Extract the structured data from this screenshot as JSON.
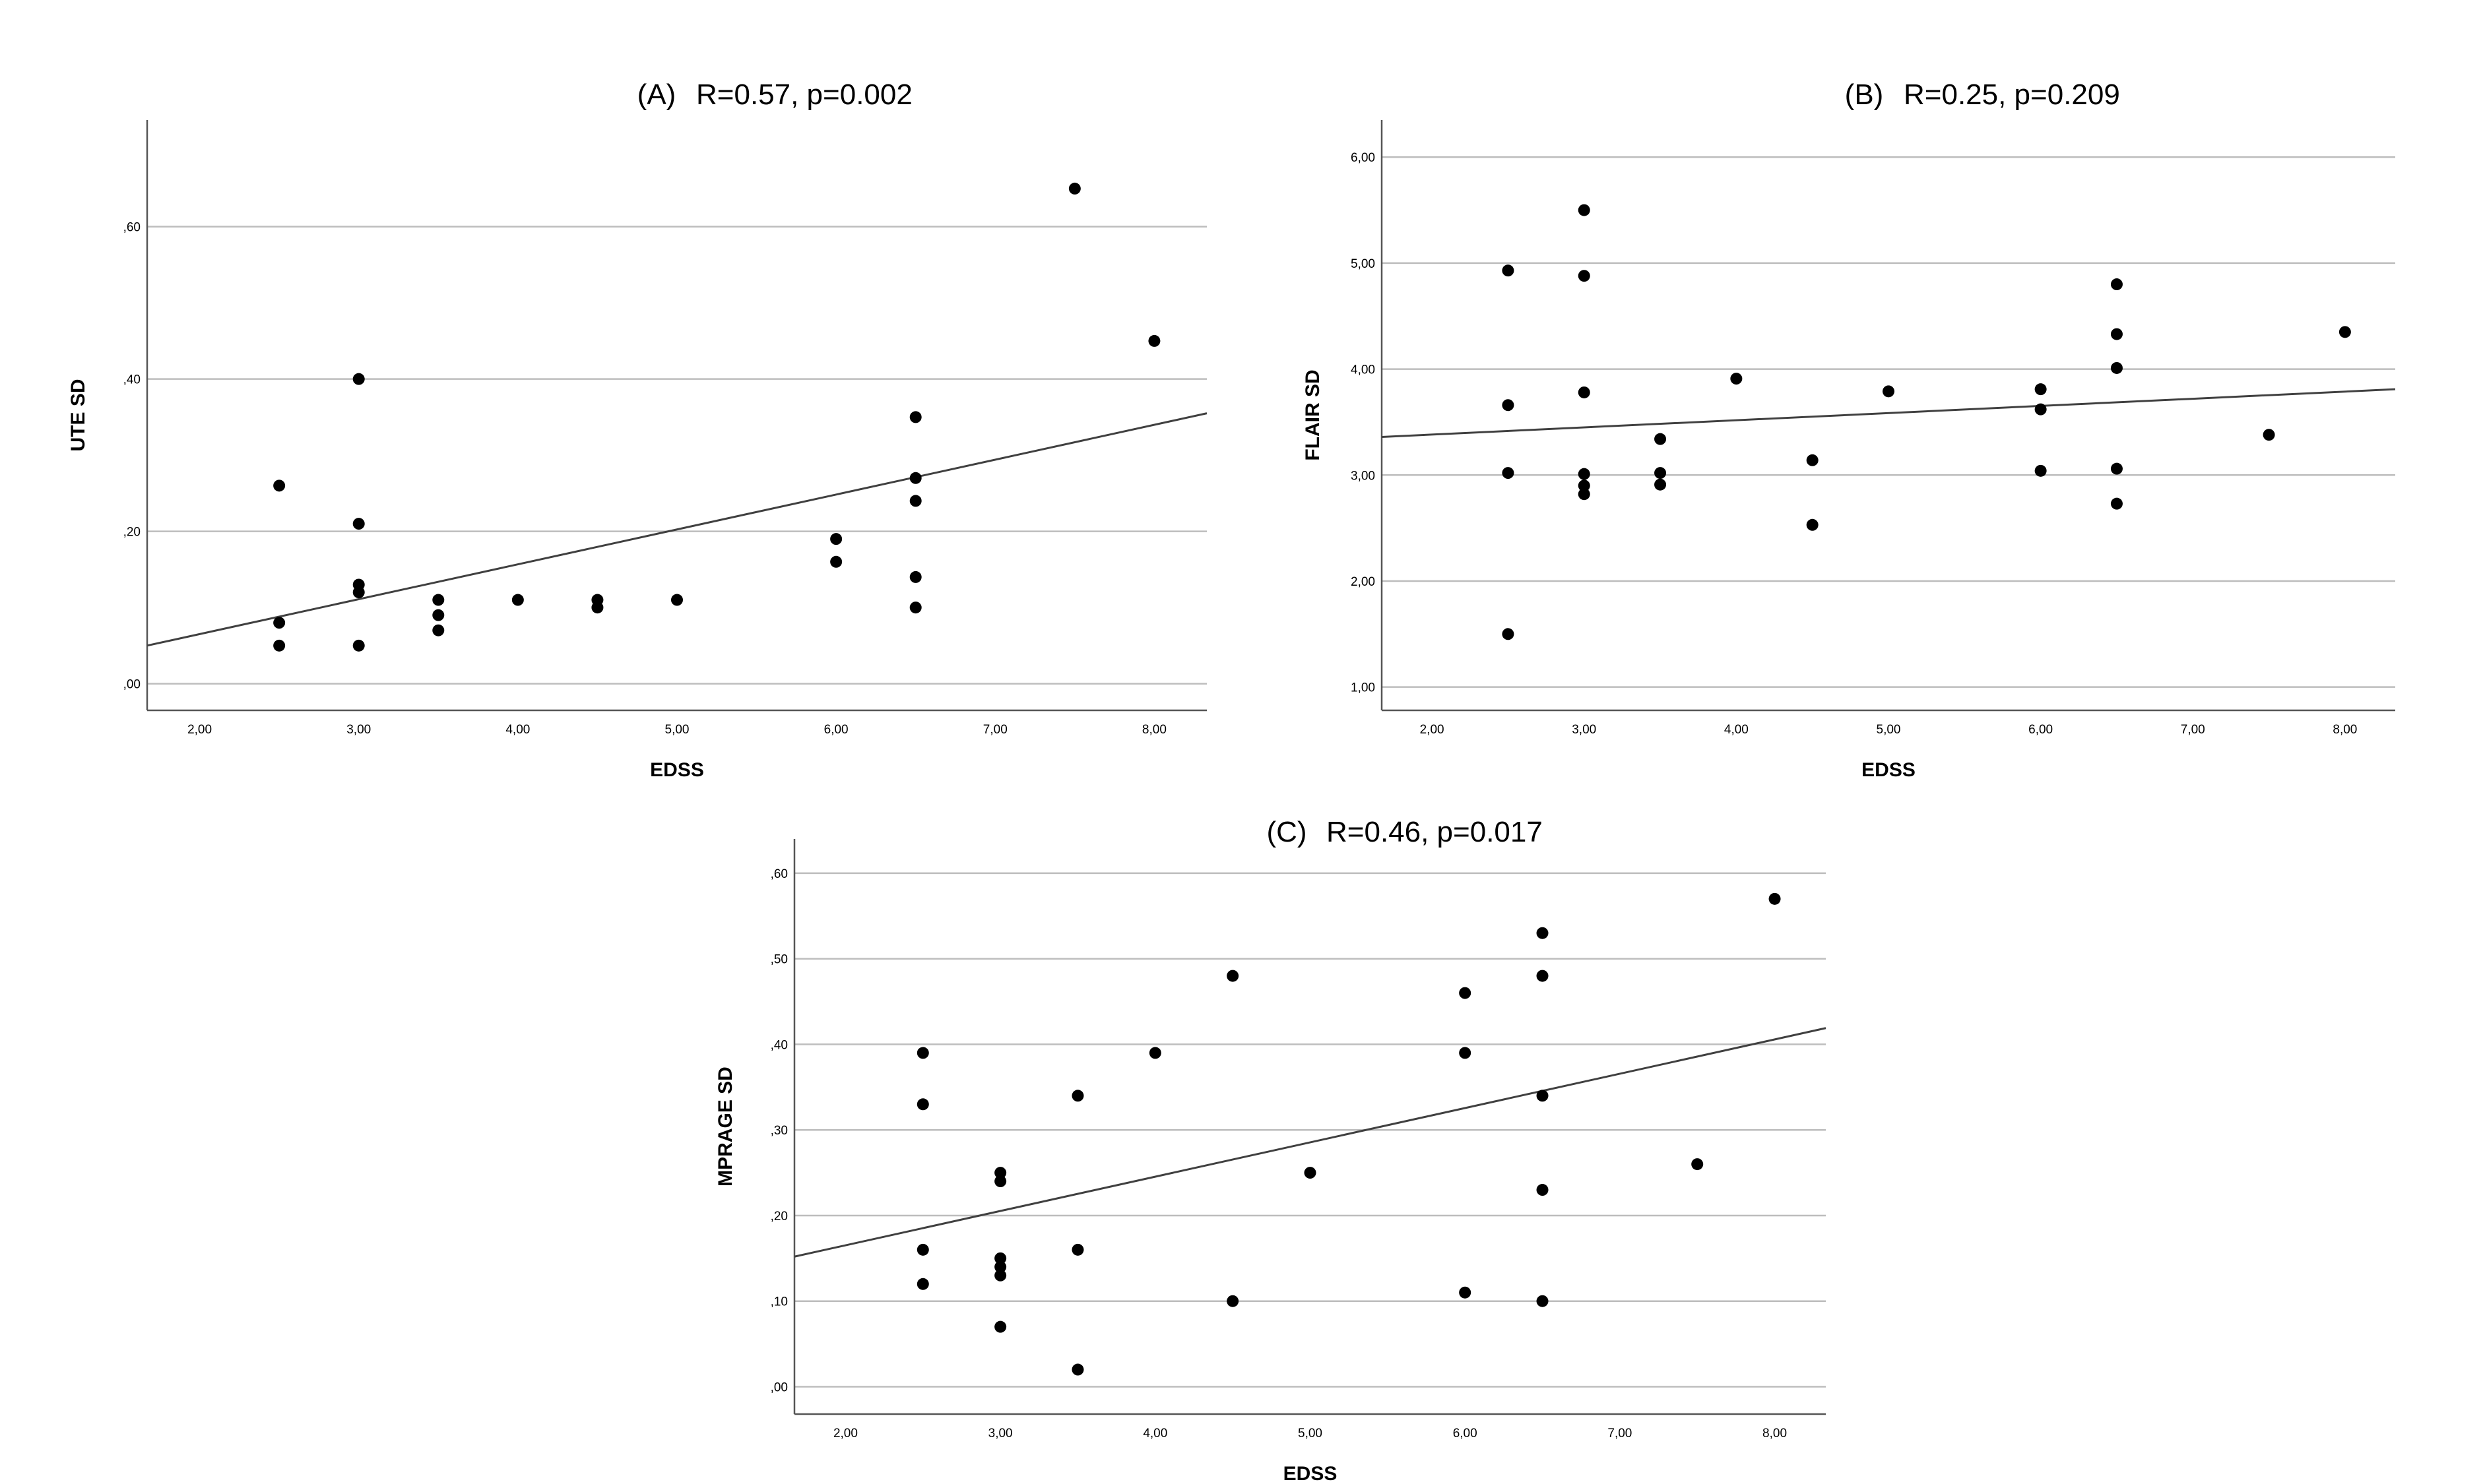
{
  "colors": {
    "gridline": "#bdbdbd",
    "axis": "#555555",
    "point": "#000000",
    "fit_line": "#404040"
  },
  "chart_data": [
    {
      "id": "A",
      "type": "scatter",
      "title_letter": "(A)",
      "title_stats": "R=0.57, p=0.002",
      "xlabel": "EDSS",
      "ylabel": "UTE SD",
      "xlim": [
        1.67,
        8.33
      ],
      "ylim": [
        -0.035,
        0.74
      ],
      "xticks": [
        2,
        3,
        4,
        5,
        6,
        7,
        8
      ],
      "xtick_labels": [
        "2,00",
        "3,00",
        "4,00",
        "5,00",
        "6,00",
        "7,00",
        "8,00"
      ],
      "yticks": [
        0,
        0.2,
        0.4,
        0.6
      ],
      "ytick_labels": [
        ",00",
        ",20",
        ",40",
        ",60"
      ],
      "grid": "horizontal",
      "points": [
        {
          "x": 2.5,
          "y": 0.26
        },
        {
          "x": 2.5,
          "y": 0.08
        },
        {
          "x": 2.5,
          "y": 0.05
        },
        {
          "x": 3.0,
          "y": 0.4
        },
        {
          "x": 3.0,
          "y": 0.21
        },
        {
          "x": 3.0,
          "y": 0.13
        },
        {
          "x": 3.0,
          "y": 0.12
        },
        {
          "x": 3.0,
          "y": 0.05
        },
        {
          "x": 3.5,
          "y": 0.11
        },
        {
          "x": 3.5,
          "y": 0.09
        },
        {
          "x": 3.5,
          "y": 0.07
        },
        {
          "x": 4.0,
          "y": 0.11
        },
        {
          "x": 4.5,
          "y": 0.11
        },
        {
          "x": 4.5,
          "y": 0.1
        },
        {
          "x": 5.0,
          "y": 0.11
        },
        {
          "x": 6.0,
          "y": 0.19
        },
        {
          "x": 6.0,
          "y": 0.16
        },
        {
          "x": 6.5,
          "y": 0.35
        },
        {
          "x": 6.5,
          "y": 0.27
        },
        {
          "x": 6.5,
          "y": 0.24
        },
        {
          "x": 6.5,
          "y": 0.14
        },
        {
          "x": 6.5,
          "y": 0.1
        },
        {
          "x": 7.5,
          "y": 0.65
        },
        {
          "x": 8.0,
          "y": 0.45
        }
      ],
      "fit_line": {
        "x1": 1.67,
        "y1": 0.05,
        "x2": 8.33,
        "y2": 0.355
      }
    },
    {
      "id": "B",
      "type": "scatter",
      "title_letter": "(B)",
      "title_stats": "R=0.25, p=0.209",
      "xlabel": "EDSS",
      "ylabel": "FLAIR SD",
      "xlim": [
        1.67,
        8.33
      ],
      "ylim": [
        0.78,
        6.35
      ],
      "xticks": [
        2,
        3,
        4,
        5,
        6,
        7,
        8
      ],
      "xtick_labels": [
        "2,00",
        "3,00",
        "4,00",
        "5,00",
        "6,00",
        "7,00",
        "8,00"
      ],
      "yticks": [
        1,
        2,
        3,
        4,
        5,
        6
      ],
      "ytick_labels": [
        "1,00",
        "2,00",
        "3,00",
        "4,00",
        "5,00",
        "6,00"
      ],
      "grid": "horizontal",
      "points": [
        {
          "x": 2.5,
          "y": 4.93
        },
        {
          "x": 2.5,
          "y": 3.66
        },
        {
          "x": 2.5,
          "y": 3.02
        },
        {
          "x": 2.5,
          "y": 1.5
        },
        {
          "x": 3.0,
          "y": 5.5
        },
        {
          "x": 3.0,
          "y": 4.88
        },
        {
          "x": 3.0,
          "y": 3.78
        },
        {
          "x": 3.0,
          "y": 3.01
        },
        {
          "x": 3.0,
          "y": 2.9
        },
        {
          "x": 3.0,
          "y": 2.82
        },
        {
          "x": 3.5,
          "y": 3.34
        },
        {
          "x": 3.5,
          "y": 3.02
        },
        {
          "x": 3.5,
          "y": 2.91
        },
        {
          "x": 4.0,
          "y": 3.91
        },
        {
          "x": 4.5,
          "y": 3.14
        },
        {
          "x": 4.5,
          "y": 2.53
        },
        {
          "x": 5.0,
          "y": 3.79
        },
        {
          "x": 6.0,
          "y": 3.81
        },
        {
          "x": 6.0,
          "y": 3.62
        },
        {
          "x": 6.0,
          "y": 3.04
        },
        {
          "x": 6.5,
          "y": 4.8
        },
        {
          "x": 6.5,
          "y": 4.33
        },
        {
          "x": 6.5,
          "y": 4.01
        },
        {
          "x": 6.5,
          "y": 3.06
        },
        {
          "x": 6.5,
          "y": 2.73
        },
        {
          "x": 7.5,
          "y": 3.38
        },
        {
          "x": 8.0,
          "y": 4.35
        }
      ],
      "fit_line": {
        "x1": 1.67,
        "y1": 3.36,
        "x2": 8.33,
        "y2": 3.81
      }
    },
    {
      "id": "C",
      "type": "scatter",
      "title_letter": "(C)",
      "title_stats": "R=0.46, p=0.017",
      "xlabel": "EDSS",
      "ylabel": "MPRAGE SD",
      "xlim": [
        1.67,
        8.33
      ],
      "ylim": [
        -0.032,
        0.64
      ],
      "xticks": [
        2,
        3,
        4,
        5,
        6,
        7,
        8
      ],
      "xtick_labels": [
        "2,00",
        "3,00",
        "4,00",
        "5,00",
        "6,00",
        "7,00",
        "8,00"
      ],
      "yticks": [
        0,
        0.1,
        0.2,
        0.3,
        0.4,
        0.5,
        0.6
      ],
      "ytick_labels": [
        ",00",
        ",10",
        ",20",
        ",30",
        ",40",
        ",50",
        ",60"
      ],
      "grid": "horizontal",
      "points": [
        {
          "x": 2.5,
          "y": 0.39
        },
        {
          "x": 2.5,
          "y": 0.33
        },
        {
          "x": 2.5,
          "y": 0.16
        },
        {
          "x": 2.5,
          "y": 0.12
        },
        {
          "x": 3.0,
          "y": 0.25
        },
        {
          "x": 3.0,
          "y": 0.24
        },
        {
          "x": 3.0,
          "y": 0.15
        },
        {
          "x": 3.0,
          "y": 0.14
        },
        {
          "x": 3.0,
          "y": 0.13
        },
        {
          "x": 3.0,
          "y": 0.07
        },
        {
          "x": 3.5,
          "y": 0.34
        },
        {
          "x": 3.5,
          "y": 0.16
        },
        {
          "x": 3.5,
          "y": 0.02
        },
        {
          "x": 4.0,
          "y": 0.39
        },
        {
          "x": 4.5,
          "y": 0.48
        },
        {
          "x": 4.5,
          "y": 0.1
        },
        {
          "x": 5.0,
          "y": 0.25
        },
        {
          "x": 6.0,
          "y": 0.46
        },
        {
          "x": 6.0,
          "y": 0.39
        },
        {
          "x": 6.0,
          "y": 0.11
        },
        {
          "x": 6.5,
          "y": 0.53
        },
        {
          "x": 6.5,
          "y": 0.48
        },
        {
          "x": 6.5,
          "y": 0.34
        },
        {
          "x": 6.5,
          "y": 0.23
        },
        {
          "x": 6.5,
          "y": 0.1
        },
        {
          "x": 7.5,
          "y": 0.26
        },
        {
          "x": 8.0,
          "y": 0.57
        }
      ],
      "fit_line": {
        "x1": 1.67,
        "y1": 0.152,
        "x2": 8.33,
        "y2": 0.419
      }
    }
  ]
}
